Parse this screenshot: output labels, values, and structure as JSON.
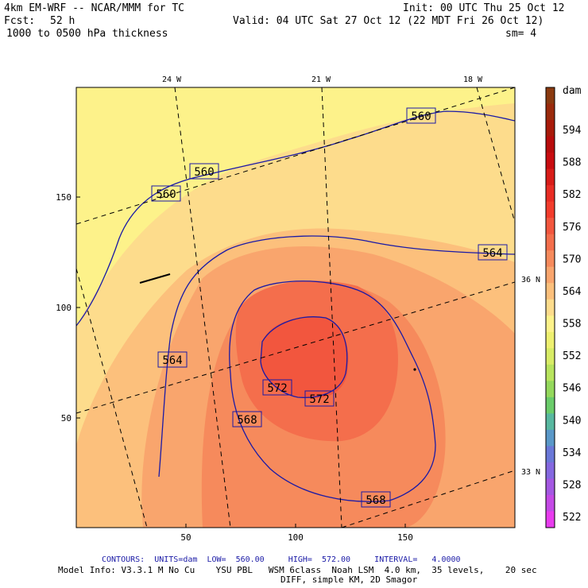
{
  "header": {
    "model": "4km EM-WRF -- NCAR/MMM for TC",
    "init": "Init: 00 UTC Thu 25 Oct 12",
    "fcst_label": "Fcst:",
    "fcst_value": "52 h",
    "valid": "Valid: 04 UTC Sat 27 Oct 12 (22 MDT Fri 26 Oct 12)",
    "field": "1000 to 0500 hPa thickness",
    "smoothing": "sm= 4"
  },
  "footer": {
    "contours": "CONTOURS:  UNITS=dam  LOW=  560.00     HIGH=  572.00     INTERVAL=   4.0000",
    "model_info": "Model Info: V3.3.1 M No Cu    YSU PBL   WSM 6class  Noah LSM  4.0 km,  35 levels,    20 sec",
    "diff": "DIFF, simple KM, 2D Smagor"
  },
  "colors": {
    "c558": "#fdf28a",
    "c562": "#fddc8c",
    "c564": "#fcc07c",
    "c566": "#f9a56d",
    "c568": "#f68a5c",
    "c570": "#f46e4c",
    "c572": "#f2563e",
    "contour": "#1a1aa6"
  },
  "chart_data": {
    "type": "heatmap",
    "title": "1000 to 0500 hPa thickness",
    "units": "dam",
    "x_ticks": [
      50,
      100,
      150
    ],
    "y_ticks": [
      50,
      100,
      150
    ],
    "xlim": [
      0,
      200
    ],
    "ylim": [
      0,
      200
    ],
    "lon_labels": [
      "24 W",
      "21 W",
      "18 W"
    ],
    "lat_labels": [
      "36 N",
      "33 N"
    ],
    "contours": {
      "low": 560.0,
      "high": 572.0,
      "interval": 4.0
    },
    "contour_labels": [
      "560",
      "560",
      "560",
      "564",
      "564",
      "568",
      "568",
      "572",
      "572"
    ],
    "colorbar": {
      "unit_label": "dam",
      "ticks": [
        "594",
        "588",
        "582",
        "576",
        "570",
        "564",
        "558",
        "552",
        "546",
        "540",
        "534",
        "528",
        "522"
      ],
      "colors": [
        "#8a3a10",
        "#9a2a0c",
        "#a81a0a",
        "#b80c0c",
        "#c80c10",
        "#d81c18",
        "#e82c24",
        "#f23c2c",
        "#f2563e",
        "#f46e4c",
        "#f68a5c",
        "#f9a56d",
        "#fcc07c",
        "#fddc8c",
        "#fdf28a",
        "#eef070",
        "#d8ec66",
        "#b8e45e",
        "#94d85c",
        "#6acc6a",
        "#58b8a0",
        "#5a98c8",
        "#6a78d8",
        "#8468e0",
        "#a458e2",
        "#c44ae6",
        "#e83cee"
      ]
    }
  }
}
